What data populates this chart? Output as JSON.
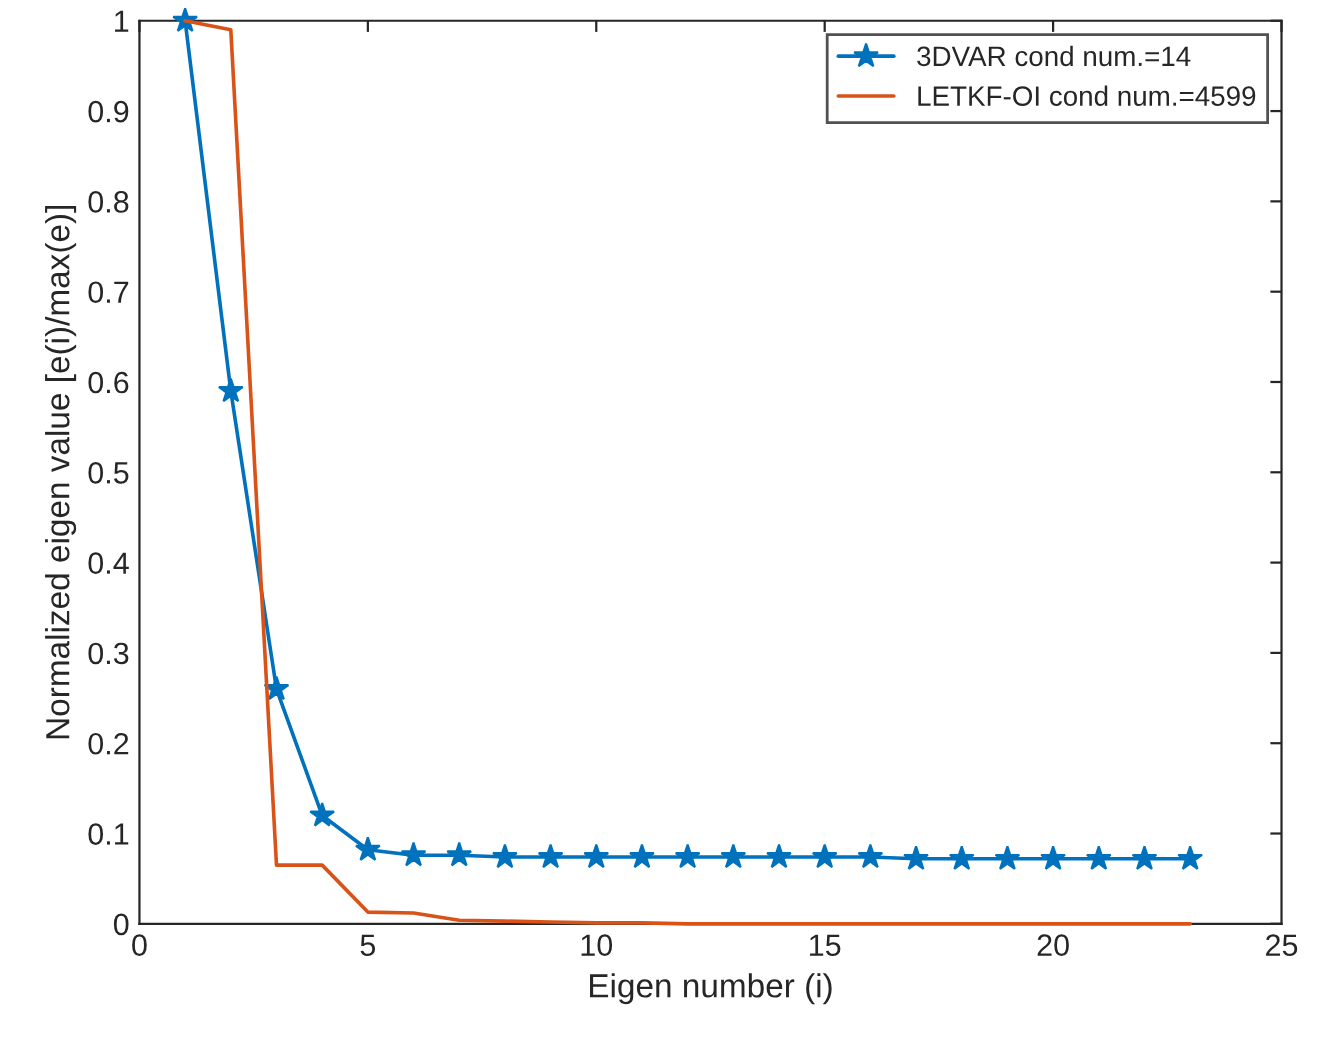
{
  "chart_data": {
    "type": "line",
    "xlabel": "Eigen number (i)",
    "ylabel": "Normalized eigen value [e(i)/max(e)]",
    "x": [
      1,
      2,
      3,
      4,
      5,
      6,
      7,
      8,
      9,
      10,
      11,
      12,
      13,
      14,
      15,
      16,
      17,
      18,
      19,
      20,
      21,
      22,
      23
    ],
    "series": [
      {
        "name": "3DVAR cond num.=14",
        "color": "#0072bd",
        "marker": "star",
        "values": [
          1.0,
          0.59,
          0.26,
          0.12,
          0.082,
          0.076,
          0.076,
          0.074,
          0.074,
          0.074,
          0.074,
          0.074,
          0.074,
          0.074,
          0.074,
          0.074,
          0.072,
          0.072,
          0.072,
          0.072,
          0.072,
          0.072,
          0.072
        ]
      },
      {
        "name": "LETKF-OI cond num.=4599",
        "color": "#d95319",
        "marker": "none",
        "values": [
          1.0,
          0.99,
          0.065,
          0.065,
          0.013,
          0.012,
          0.004,
          0.003,
          0.002,
          0.001,
          0.001,
          0.0,
          0.0,
          0.0,
          0.0,
          0.0,
          0.0,
          0.0,
          0.0,
          0.0,
          0.0,
          0.0,
          0.0
        ]
      }
    ],
    "xlim": [
      0,
      25
    ],
    "xticks": [
      0,
      5,
      10,
      15,
      20,
      25
    ],
    "ylim": [
      0,
      1
    ],
    "yticks": [
      0,
      0.1,
      0.2,
      0.3,
      0.4,
      0.5,
      0.6,
      0.7,
      0.8,
      0.9,
      1
    ],
    "grid": false,
    "legend": "top right"
  }
}
